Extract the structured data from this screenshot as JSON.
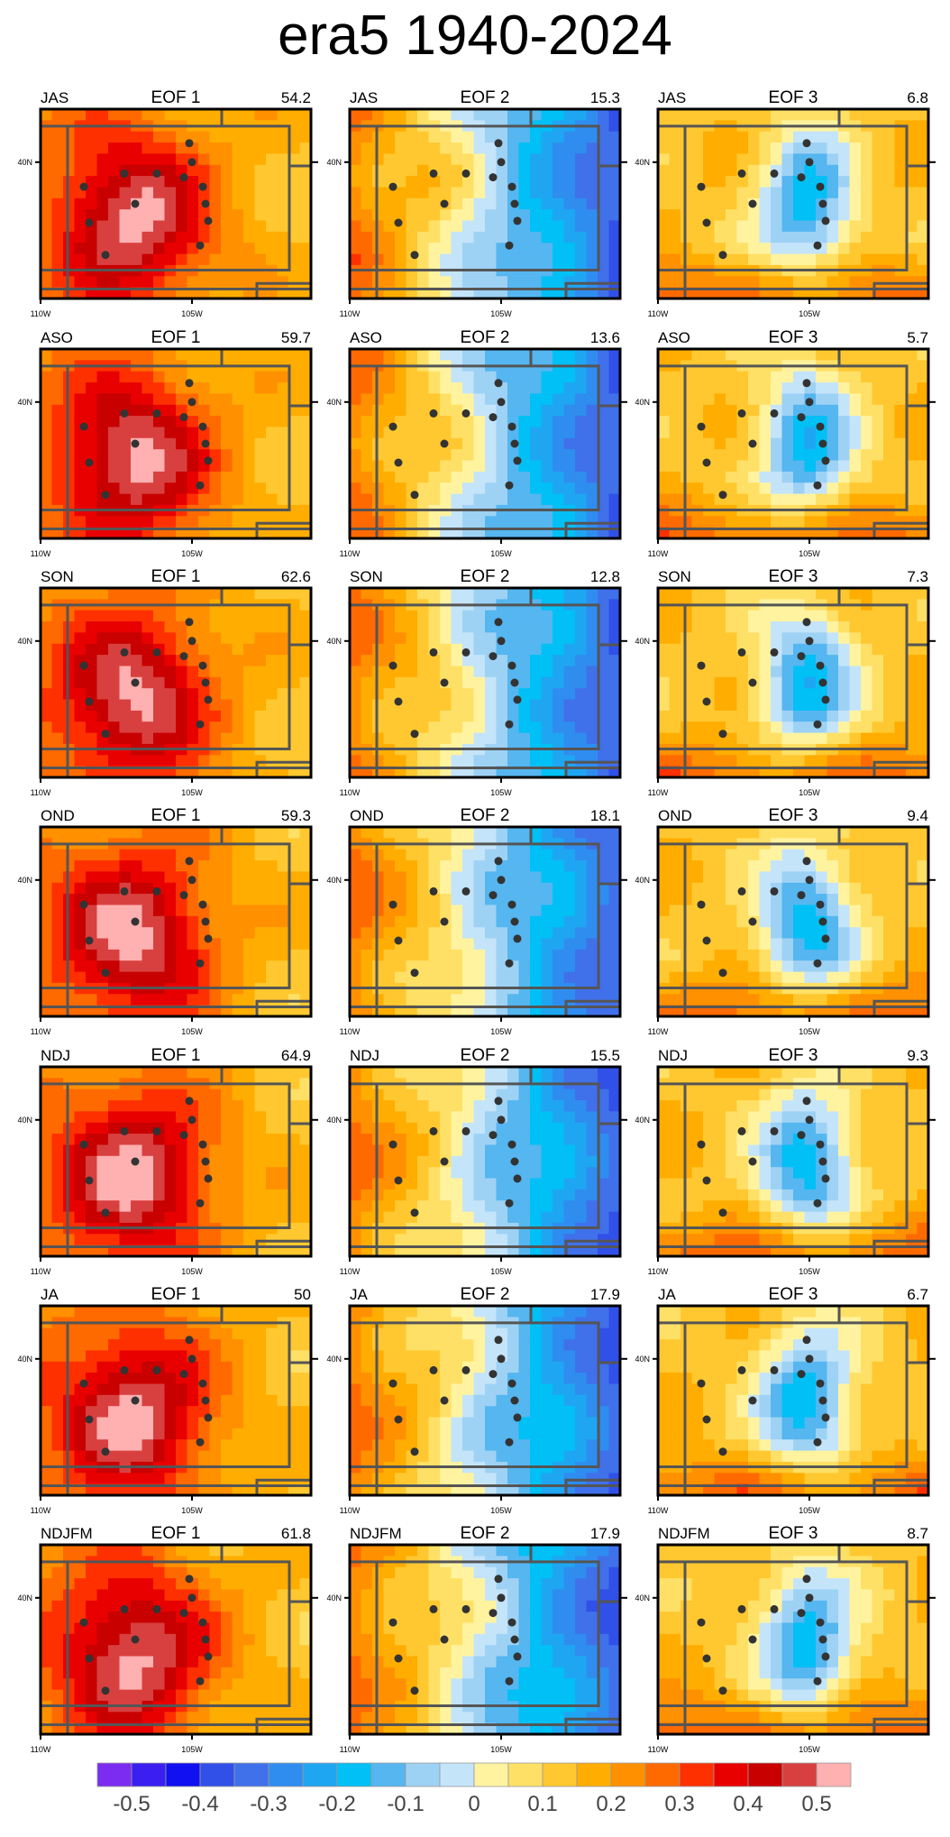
{
  "title": "era5 1940-2024",
  "chart_data": {
    "type": "heatmap",
    "grid": {
      "rows": 7,
      "cols": 3
    },
    "lon_ticks": [
      "110W",
      "105W"
    ],
    "lat_ticks": [
      "40N"
    ],
    "colorbar": {
      "labels": [
        "-0.5",
        "-0.4",
        "-0.3",
        "-0.2",
        "-0.1",
        "0",
        "0.1",
        "0.2",
        "0.3",
        "0.4",
        "0.5"
      ],
      "colors": [
        "#7b2cf0",
        "#3a1ff0",
        "#1010f0",
        "#3050e8",
        "#4070ea",
        "#2f8df0",
        "#1fa6f2",
        "#00c0f5",
        "#55b6f0",
        "#9ed2f5",
        "#c4e4fa",
        "#fff3a0",
        "#ffe066",
        "#ffc830",
        "#ffad00",
        "#ff9000",
        "#ff6a00",
        "#ff3000",
        "#e80000",
        "#c80000",
        "#d84040",
        "#ffb0b0"
      ]
    },
    "panels": [
      {
        "season": "JAS",
        "eof": "EOF 1",
        "var": "54.2"
      },
      {
        "season": "JAS",
        "eof": "EOF 2",
        "var": "15.3"
      },
      {
        "season": "JAS",
        "eof": "EOF 3",
        "var": "6.8"
      },
      {
        "season": "ASO",
        "eof": "EOF 1",
        "var": "59.7"
      },
      {
        "season": "ASO",
        "eof": "EOF 2",
        "var": "13.6"
      },
      {
        "season": "ASO",
        "eof": "EOF 3",
        "var": "5.7"
      },
      {
        "season": "SON",
        "eof": "EOF 1",
        "var": "62.6"
      },
      {
        "season": "SON",
        "eof": "EOF 2",
        "var": "12.8"
      },
      {
        "season": "SON",
        "eof": "EOF 3",
        "var": "7.3"
      },
      {
        "season": "OND",
        "eof": "EOF 1",
        "var": "59.3"
      },
      {
        "season": "OND",
        "eof": "EOF 2",
        "var": "18.1"
      },
      {
        "season": "OND",
        "eof": "EOF 3",
        "var": "9.4"
      },
      {
        "season": "NDJ",
        "eof": "EOF 1",
        "var": "64.9"
      },
      {
        "season": "NDJ",
        "eof": "EOF 2",
        "var": "15.5"
      },
      {
        "season": "NDJ",
        "eof": "EOF 3",
        "var": "9.3"
      },
      {
        "season": "JA",
        "eof": "EOF 1",
        "var": "50"
      },
      {
        "season": "JA",
        "eof": "EOF 2",
        "var": "17.9"
      },
      {
        "season": "JA",
        "eof": "EOF 3",
        "var": "6.7"
      },
      {
        "season": "NDJFM",
        "eof": "EOF 1",
        "var": "61.8"
      },
      {
        "season": "NDJFM",
        "eof": "EOF 2",
        "var": "17.9"
      },
      {
        "season": "NDJFM",
        "eof": "EOF 3",
        "var": "8.7"
      }
    ]
  }
}
